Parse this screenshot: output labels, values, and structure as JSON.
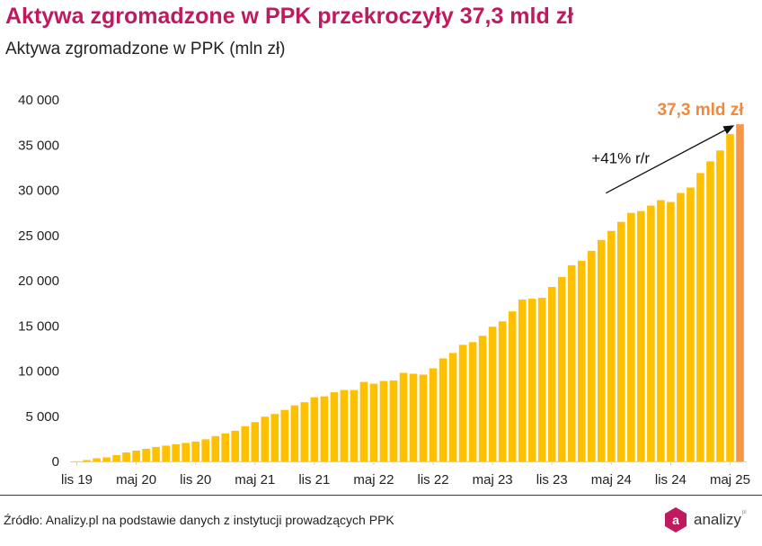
{
  "title": "Aktywa zgromadzone w PPK przekroczyły 37,3 mld zł",
  "subtitle": "Aktywa zgromadzone w PPK (mln zł)",
  "source": "Źródło: Analizy.pl na podstawie danych z instytucji prowadzących PPK",
  "brand": {
    "name": "analizy",
    "mark": "pl",
    "icon": "analizy-logo-icon",
    "color": "#c1195f"
  },
  "colors": {
    "bar": "#ffc000",
    "highlight_bar": "#f79646",
    "highlight_label": "#f0883e",
    "title": "#c1195f",
    "axis": "#d9d9d9"
  },
  "chart_data": {
    "type": "bar",
    "title": "Aktywa zgromadzone w PPK (mln zł)",
    "ylim": [
      0,
      40000
    ],
    "y_ticks": [
      0,
      5000,
      10000,
      15000,
      20000,
      25000,
      30000,
      35000,
      40000
    ],
    "y_tick_labels": [
      "0",
      "5 000",
      "10 000",
      "15 000",
      "20 000",
      "25 000",
      "30 000",
      "35 000",
      "40 000"
    ],
    "x_tick_labels": [
      {
        "index": 0,
        "label": "lis 19"
      },
      {
        "index": 6,
        "label": "maj 20"
      },
      {
        "index": 12,
        "label": "lis 20"
      },
      {
        "index": 18,
        "label": "maj 21"
      },
      {
        "index": 24,
        "label": "lis 21"
      },
      {
        "index": 30,
        "label": "maj 22"
      },
      {
        "index": 36,
        "label": "lis 22"
      },
      {
        "index": 42,
        "label": "maj 23"
      },
      {
        "index": 48,
        "label": "lis 23"
      },
      {
        "index": 54,
        "label": "maj 24"
      },
      {
        "index": 60,
        "label": "lis 24"
      },
      {
        "index": 66,
        "label": "maj 25"
      }
    ],
    "grid": false,
    "values": [
      20,
      150,
      350,
      450,
      700,
      1000,
      1200,
      1400,
      1600,
      1750,
      1900,
      2050,
      2200,
      2450,
      2800,
      3100,
      3400,
      3900,
      4350,
      4950,
      5250,
      5700,
      6200,
      6550,
      7100,
      7200,
      7650,
      7900,
      7900,
      8800,
      8600,
      8900,
      8950,
      9800,
      9700,
      9600,
      10300,
      11400,
      12000,
      12900,
      13200,
      13900,
      14900,
      15500,
      16600,
      17900,
      18000,
      18100,
      19300,
      20400,
      21700,
      22200,
      23300,
      24500,
      25500,
      26500,
      27500,
      27700,
      28300,
      28900,
      28700,
      29700,
      30300,
      31900,
      33200,
      34400,
      36200,
      37300
    ],
    "highlight_index": 67,
    "annotations": [
      {
        "text": "37,3 mld zł",
        "target": "last-bar"
      },
      {
        "text": "+41% r/r",
        "type": "arrow"
      }
    ]
  }
}
